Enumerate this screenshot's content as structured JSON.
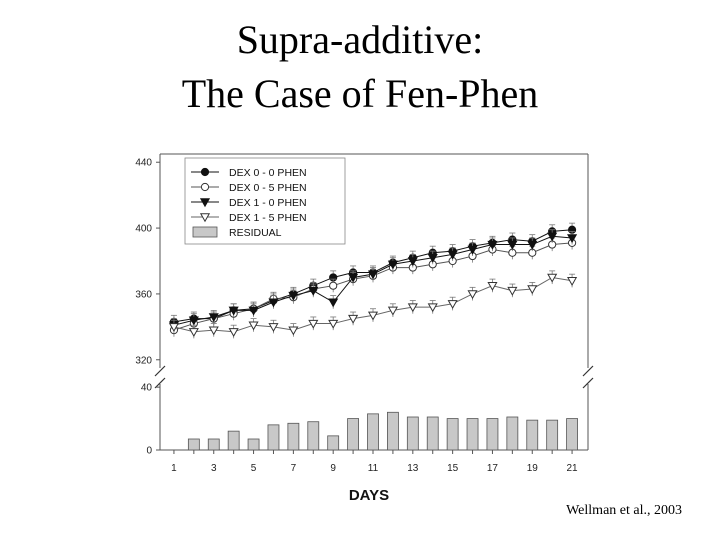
{
  "slide": {
    "title_line1": "Supra-additive:",
    "title_line2": "The Case of Fen-Phen",
    "citation": "Wellman et al., 2003"
  },
  "chart_data": {
    "type": "line",
    "title": "",
    "xlabel": "DAYS",
    "ylabel": "",
    "x": [
      1,
      2,
      3,
      4,
      5,
      6,
      7,
      8,
      9,
      10,
      11,
      12,
      13,
      14,
      15,
      16,
      17,
      18,
      19,
      20,
      21
    ],
    "x_ticks": [
      "1",
      "3",
      "5",
      "7",
      "9",
      "11",
      "13",
      "15",
      "17",
      "19",
      "21"
    ],
    "upper_panel": {
      "ylim": [
        315,
        445
      ],
      "y_ticks": [
        "320",
        "360",
        "400",
        "440"
      ],
      "series": [
        {
          "name": "DEX 0 - 0 PHEN",
          "marker": "filled-circle",
          "values": [
            343,
            345,
            345,
            350,
            351,
            356,
            360,
            365,
            370,
            373,
            373,
            379,
            382,
            385,
            386,
            389,
            391,
            393,
            392,
            398,
            399
          ]
        },
        {
          "name": "DEX 0 - 5 PHEN",
          "marker": "open-circle",
          "values": [
            338,
            342,
            345,
            348,
            351,
            357,
            358,
            363,
            365,
            369,
            371,
            376,
            376,
            378,
            380,
            383,
            387,
            385,
            385,
            390,
            391
          ]
        },
        {
          "name": "DEX 1 - 0 PHEN",
          "marker": "filled-triangle",
          "values": [
            341,
            344,
            346,
            350,
            350,
            355,
            359,
            362,
            355,
            370,
            372,
            378,
            380,
            382,
            384,
            387,
            390,
            390,
            390,
            395,
            394
          ]
        },
        {
          "name": "DEX 1 - 5 PHEN",
          "marker": "open-triangle",
          "values": [
            340,
            337,
            338,
            337,
            341,
            340,
            338,
            342,
            342,
            345,
            347,
            350,
            352,
            352,
            354,
            360,
            365,
            362,
            363,
            370,
            368
          ]
        }
      ]
    },
    "lower_panel": {
      "name": "RESIDUAL",
      "ylim": [
        0,
        42
      ],
      "y_ticks": [
        "0",
        "40"
      ],
      "values": [
        0,
        7,
        7,
        12,
        7,
        16,
        17,
        18,
        9,
        20,
        23,
        24,
        21,
        21,
        20,
        20,
        20,
        21,
        19,
        19,
        20
      ]
    },
    "legend": {
      "placement": "top-left"
    },
    "grid": false
  }
}
